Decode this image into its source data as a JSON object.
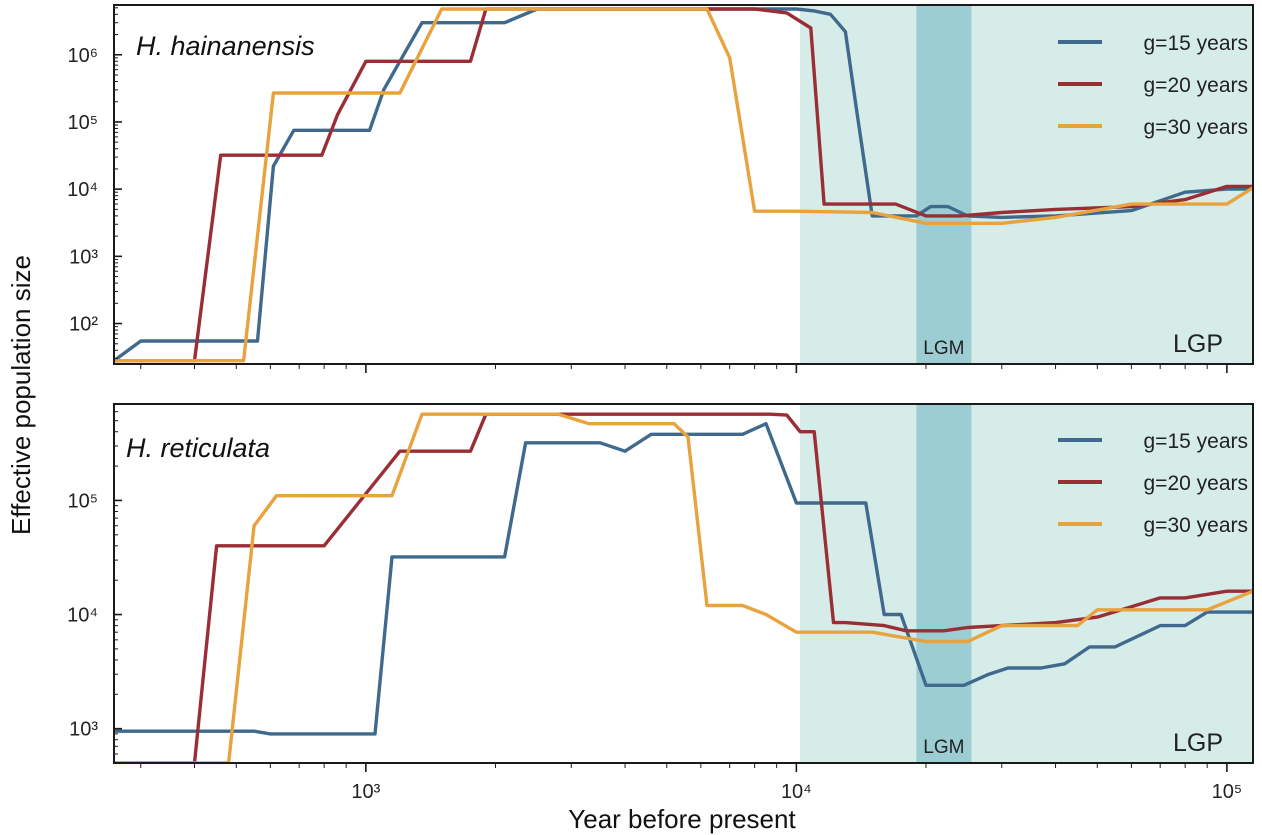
{
  "figure": {
    "x_axis_title": "Year before present",
    "y_axis_title": "Effective population size"
  },
  "chart_data": [
    {
      "type": "line",
      "title": "H. hainanensis",
      "xlabel": "Year before present",
      "ylabel": "Effective population size",
      "x_scale": "log",
      "y_scale": "log",
      "xlim": [
        260,
        115000
      ],
      "ylim": [
        25,
        5500000
      ],
      "x_ticks": [
        {
          "value": 1000,
          "label": "10³"
        },
        {
          "value": 10000,
          "label": "10⁴"
        },
        {
          "value": 100000,
          "label": "10⁵"
        }
      ],
      "y_ticks": [
        {
          "value": 100,
          "label": "10²"
        },
        {
          "value": 1000,
          "label": "10³"
        },
        {
          "value": 10000,
          "label": "10⁴"
        },
        {
          "value": 100000,
          "label": "10⁵"
        },
        {
          "value": 1000000,
          "label": "10⁶"
        }
      ],
      "shaded_regions": [
        {
          "label": "LGP",
          "x_start": 10200,
          "x_end": 115000,
          "color": "#d6ece8"
        },
        {
          "label": "LGM",
          "x_start": 19000,
          "x_end": 25500,
          "color": "#9ccdd3"
        }
      ],
      "legend_position": "top-right",
      "series": [
        {
          "name": "g=15 years",
          "color": "#3f6a8d",
          "x": [
            260,
            300,
            560,
            610,
            680,
            1020,
            1100,
            1200,
            1350,
            2100,
            2500,
            8500,
            10000,
            11000,
            12000,
            13000,
            13800,
            15000,
            19000,
            20500,
            22500,
            25000,
            30000,
            40000,
            60000,
            80000,
            100000,
            115000
          ],
          "y": [
            28,
            55,
            55,
            22000,
            75000,
            75000,
            300000,
            800000,
            3000000,
            3000000,
            4800000,
            4800000,
            4800000,
            4500000,
            4000000,
            2200000,
            150000,
            4000,
            4000,
            5500,
            5500,
            4000,
            3800,
            4000,
            4800,
            9000,
            10000,
            10000
          ]
        },
        {
          "name": "g=20 years",
          "color": "#9a2e35",
          "x": [
            260,
            400,
            460,
            790,
            860,
            1000,
            1100,
            1750,
            1900,
            8000,
            9500,
            10800,
            11600,
            12500,
            17000,
            20000,
            24000,
            30000,
            40000,
            60000,
            80000,
            100000,
            115000
          ],
          "y": [
            28,
            28,
            32000,
            32000,
            130000,
            800000,
            800000,
            800000,
            4800000,
            4800000,
            4200000,
            2500000,
            6000,
            6000,
            6000,
            4000,
            4000,
            4500,
            5000,
            5500,
            7000,
            11000,
            11000
          ]
        },
        {
          "name": "g=30 years",
          "color": "#e8a23e",
          "x": [
            260,
            520,
            610,
            1150,
            1200,
            1500,
            6200,
            7000,
            8000,
            10000,
            15000,
            20000,
            25000,
            30000,
            40000,
            60000,
            80000,
            100000,
            115000
          ],
          "y": [
            28,
            28,
            270000,
            270000,
            270000,
            4800000,
            4800000,
            900000,
            4700,
            4700,
            4500,
            3100,
            3100,
            3100,
            3800,
            6000,
            6000,
            6000,
            10500
          ]
        }
      ]
    },
    {
      "type": "line",
      "title": "H. reticulata",
      "xlabel": "Year before present",
      "ylabel": "Effective population size",
      "x_scale": "log",
      "y_scale": "log",
      "xlim": [
        260,
        115000
      ],
      "ylim": [
        500,
        700000
      ],
      "x_ticks": [
        {
          "value": 1000,
          "label": "10³"
        },
        {
          "value": 10000,
          "label": "10⁴"
        },
        {
          "value": 100000,
          "label": "10⁵"
        }
      ],
      "y_ticks": [
        {
          "value": 1000,
          "label": "10³"
        },
        {
          "value": 10000,
          "label": "10⁴"
        },
        {
          "value": 100000,
          "label": "10⁵"
        }
      ],
      "shaded_regions": [
        {
          "label": "LGP",
          "x_start": 10200,
          "x_end": 115000,
          "color": "#d6ece8"
        },
        {
          "label": "LGM",
          "x_start": 19000,
          "x_end": 25500,
          "color": "#9ccdd3"
        }
      ],
      "legend_position": "top-right",
      "series": [
        {
          "name": "g=15 years",
          "color": "#3f6a8d",
          "x": [
            260,
            550,
            600,
            1050,
            1150,
            2100,
            2350,
            3500,
            4000,
            4600,
            7500,
            8500,
            10000,
            14500,
            16000,
            17500,
            20000,
            21500,
            24500,
            28000,
            31000,
            37000,
            42000,
            48000,
            55000,
            70000,
            80000,
            90000,
            100000,
            115000
          ],
          "y": [
            950,
            950,
            900,
            900,
            32000,
            32000,
            320000,
            320000,
            270000,
            380000,
            380000,
            470000,
            95000,
            95000,
            10000,
            10000,
            2400,
            2400,
            2400,
            3000,
            3400,
            3400,
            3700,
            5200,
            5200,
            8000,
            8000,
            10500,
            10500,
            10500
          ]
        },
        {
          "name": "g=20 years",
          "color": "#9a2e35",
          "x": [
            260,
            400,
            450,
            800,
            1200,
            1750,
            1900,
            7700,
            8700,
            9500,
            10200,
            11000,
            12200,
            13000,
            16000,
            18000,
            22000,
            25000,
            30000,
            40000,
            50000,
            70000,
            80000,
            100000,
            115000
          ],
          "y": [
            500,
            500,
            40000,
            40000,
            270000,
            270000,
            570000,
            570000,
            570000,
            560000,
            400000,
            400000,
            8500,
            8500,
            8000,
            7200,
            7200,
            7700,
            8000,
            8500,
            9500,
            14000,
            14000,
            16000,
            16000
          ]
        },
        {
          "name": "g=30 years",
          "color": "#e8a23e",
          "x": [
            260,
            480,
            550,
            620,
            1150,
            1350,
            2800,
            3300,
            5200,
            5600,
            6200,
            7500,
            8500,
            10000,
            15000,
            20000,
            25000,
            30000,
            45000,
            50000,
            75000,
            90000,
            115000
          ],
          "y": [
            500,
            500,
            60000,
            110000,
            110000,
            570000,
            570000,
            470000,
            470000,
            360000,
            12000,
            12000,
            10000,
            7000,
            7000,
            5800,
            5800,
            8000,
            8000,
            11000,
            11000,
            11000,
            16000
          ]
        }
      ]
    }
  ]
}
